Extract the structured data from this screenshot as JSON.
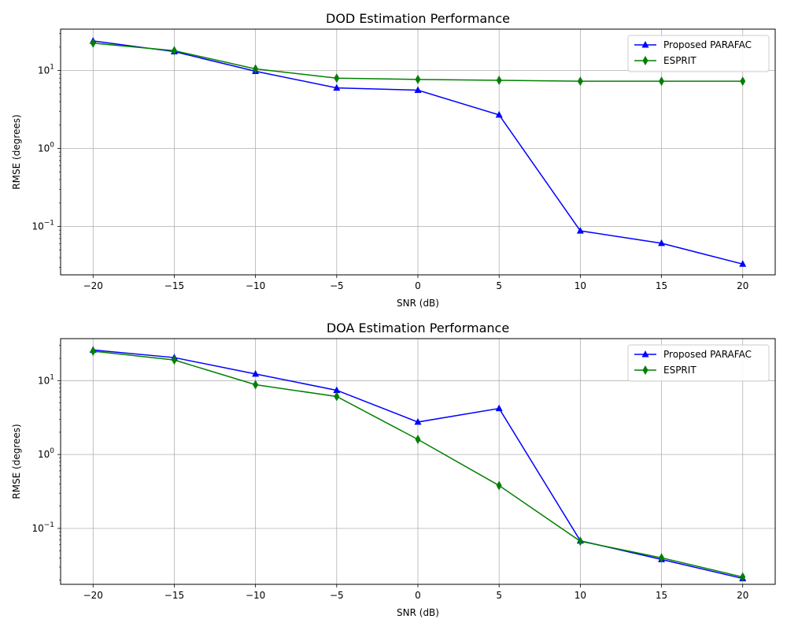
{
  "chart_data": [
    {
      "type": "line",
      "title": "DOD Estimation Performance",
      "xlabel": "SNR (dB)",
      "ylabel": "RMSE (degrees)",
      "x": [
        -20,
        -15,
        -10,
        -5,
        0,
        5,
        10,
        15,
        20
      ],
      "xticks": [
        -20,
        -15,
        -10,
        -5,
        0,
        5,
        10,
        15,
        20
      ],
      "xtick_labels": [
        "−20",
        "−15",
        "−10",
        "−5",
        "0",
        "5",
        "10",
        "15",
        "20"
      ],
      "xlim": [
        -22,
        22
      ],
      "yscale": "log",
      "ylim": [
        0.024,
        34
      ],
      "yticks": [
        0.1,
        1,
        10
      ],
      "ytick_bases": [
        "10",
        "10",
        "10"
      ],
      "ytick_exps": [
        "−1",
        "0",
        "1"
      ],
      "grid": true,
      "legend_position": "upper-right",
      "series": [
        {
          "name": "Proposed PARAFAC",
          "color": "#0000ff",
          "marker": "triangle",
          "values": [
            24,
            17.5,
            9.8,
            6.0,
            5.6,
            2.7,
            0.088,
            0.061,
            0.033
          ]
        },
        {
          "name": "ESPRIT",
          "color": "#008000",
          "marker": "diamond",
          "values": [
            22.5,
            18,
            10.5,
            8.0,
            7.7,
            7.5,
            7.3,
            7.3,
            7.3
          ]
        }
      ]
    },
    {
      "type": "line",
      "title": "DOA Estimation Performance",
      "xlabel": "SNR (dB)",
      "ylabel": "RMSE (degrees)",
      "x": [
        -20,
        -15,
        -10,
        -5,
        0,
        5,
        10,
        15,
        20
      ],
      "xticks": [
        -20,
        -15,
        -10,
        -5,
        0,
        5,
        10,
        15,
        20
      ],
      "xtick_labels": [
        "−20",
        "−15",
        "−10",
        "−5",
        "0",
        "5",
        "10",
        "15",
        "20"
      ],
      "xlim": [
        -22,
        22
      ],
      "yscale": "log",
      "ylim": [
        0.0175,
        37
      ],
      "yticks": [
        0.1,
        1,
        10
      ],
      "ytick_bases": [
        "10",
        "10",
        "10"
      ],
      "ytick_exps": [
        "−1",
        "0",
        "1"
      ],
      "grid": true,
      "legend_position": "upper-right",
      "series": [
        {
          "name": "Proposed PARAFAC",
          "color": "#0000ff",
          "marker": "triangle",
          "values": [
            26,
            20.5,
            12.3,
            7.4,
            2.75,
            4.2,
            0.068,
            0.038,
            0.021
          ]
        },
        {
          "name": "ESPRIT",
          "color": "#008000",
          "marker": "diamond",
          "values": [
            25,
            19,
            8.8,
            6.1,
            1.6,
            0.38,
            0.067,
            0.04,
            0.022
          ]
        }
      ]
    }
  ]
}
